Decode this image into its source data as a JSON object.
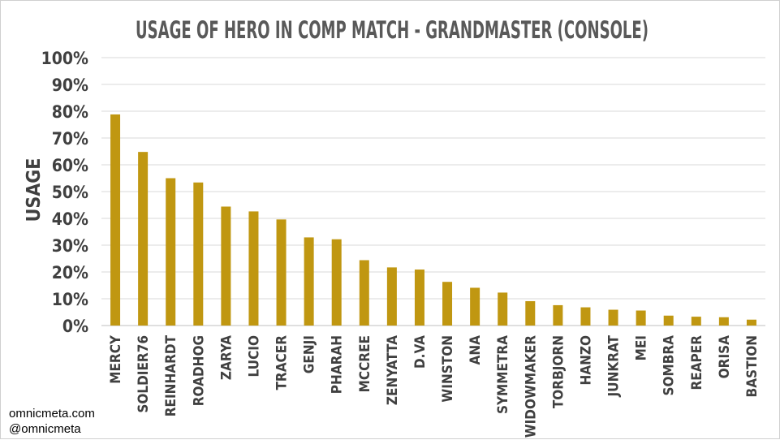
{
  "chart_data": {
    "type": "bar",
    "title": "USAGE OF HERO IN COMP MATCH - GRANDMASTER (CONSOLE)",
    "xlabel": "",
    "ylabel": "USAGE",
    "ylim": [
      0,
      100
    ],
    "yticks": [
      "0%",
      "10%",
      "20%",
      "30%",
      "40%",
      "50%",
      "60%",
      "70%",
      "80%",
      "90%",
      "100%"
    ],
    "grid": true,
    "legend": "none",
    "categories": [
      "MERCY",
      "SOLDIER76",
      "REINHARDT",
      "ROADHOG",
      "ZARYA",
      "LUCIO",
      "TRACER",
      "GENJI",
      "PHARAH",
      "MCCREE",
      "ZENYATTA",
      "D.VA",
      "WINSTON",
      "ANA",
      "SYMMETRA",
      "WIDOWMAKER",
      "TORBJORN",
      "HANZO",
      "JUNKRAT",
      "MEI",
      "SOMBRA",
      "REAPER",
      "ORISA",
      "BASTION"
    ],
    "values": [
      78.8,
      64.8,
      55.0,
      53.4,
      44.4,
      42.6,
      39.6,
      32.9,
      32.2,
      24.4,
      21.7,
      20.9,
      16.3,
      14.1,
      12.3,
      9.1,
      7.6,
      6.8,
      5.9,
      5.6,
      3.7,
      3.3,
      3.1,
      2.2
    ],
    "bar_color": "#c09711",
    "grid_color": "#d9d9d9",
    "text_color": "#404040"
  },
  "credits": {
    "site": "omnicmeta.com",
    "handle": "@omnicmeta"
  }
}
